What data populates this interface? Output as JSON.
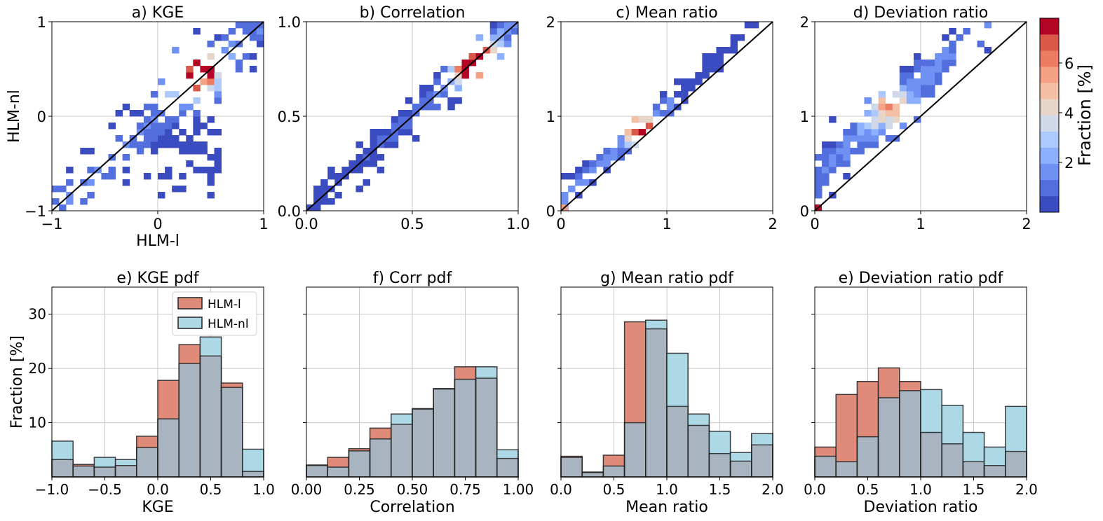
{
  "colors": {
    "hlm_l": "#e08a7a",
    "hlm_nl": "#add8e6",
    "overlap": "#a8b4c0",
    "grid": "#c8c8c8",
    "identity": "#000000"
  },
  "colorbar": {
    "label": "Fraction [%]",
    "ticks": [
      "2",
      "4",
      "6"
    ],
    "palette": [
      "#3b4cc0",
      "#536edd",
      "#6f91f3",
      "#8db0fe",
      "#aec9fd",
      "#cfd9ea",
      "#e8d5c9",
      "#f3c0a6",
      "#f5a186",
      "#ed7d62",
      "#d95847",
      "#b40426"
    ],
    "max": 7.8
  },
  "chart_data": [
    {
      "type": "heatmap",
      "title": "a) KGE",
      "xlabel": "HLM-l",
      "ylabel": "HLM-nl",
      "xlim": [
        -1,
        1
      ],
      "ylim": [
        -1,
        1
      ],
      "xticks": [
        "−1",
        "0",
        "1"
      ],
      "yticks": [
        "−1",
        "0",
        "1"
      ],
      "grid": true,
      "identity_line": true
    },
    {
      "type": "heatmap",
      "title": "b) Correlation",
      "xlim": [
        0,
        1
      ],
      "ylim": [
        0,
        1
      ],
      "xticks": [
        "0.0",
        "0.5",
        "1.0"
      ],
      "yticks": [
        "0.0",
        "0.5",
        "1.0"
      ],
      "grid": true,
      "identity_line": true
    },
    {
      "type": "heatmap",
      "title": "c) Mean ratio",
      "xlim": [
        0,
        2
      ],
      "ylim": [
        0,
        2
      ],
      "xticks": [
        "0",
        "1",
        "2"
      ],
      "yticks": [
        "0",
        "1",
        "2"
      ],
      "grid": true,
      "identity_line": true
    },
    {
      "type": "heatmap",
      "title": "d) Deviation ratio",
      "xlim": [
        0,
        2
      ],
      "ylim": [
        0,
        2
      ],
      "xticks": [
        "0",
        "1",
        "2"
      ],
      "yticks": [
        "0",
        "1",
        "2"
      ],
      "grid": true,
      "identity_line": true
    },
    {
      "type": "bar",
      "title": "e) KGE pdf",
      "xlabel": "KGE",
      "ylabel": "Fraction [%]",
      "xlim": [
        -1,
        1
      ],
      "ylim": [
        0,
        35
      ],
      "xticks": [
        "−1.0",
        "−0.5",
        "0.0",
        "0.5",
        "1.0"
      ],
      "yticks": [
        "10",
        "20",
        "30"
      ],
      "legend": "top-right",
      "bin_edges": [
        -1.0,
        -0.8,
        -0.6,
        -0.4,
        -0.2,
        0.0,
        0.2,
        0.4,
        0.6,
        0.8,
        1.0
      ],
      "series": [
        {
          "name": "HLM-l",
          "values": [
            3.2,
            2.3,
            1.8,
            2.1,
            7.5,
            17.8,
            24.4,
            22.3,
            17.3,
            1.0
          ]
        },
        {
          "name": "HLM-nl",
          "values": [
            6.6,
            2.0,
            3.6,
            3.2,
            5.4,
            10.7,
            20.9,
            25.8,
            16.5,
            5.1
          ]
        }
      ]
    },
    {
      "type": "bar",
      "title": "f) Corr pdf",
      "xlabel": "Correlation",
      "xlim": [
        0,
        1
      ],
      "ylim": [
        0,
        35
      ],
      "xticks": [
        "0.00",
        "0.25",
        "0.50",
        "0.75",
        "1.00"
      ],
      "bin_edges": [
        0.0,
        0.1,
        0.2,
        0.3,
        0.4,
        0.5,
        0.6,
        0.7,
        0.8,
        0.9,
        1.0
      ],
      "series": [
        {
          "name": "HLM-l",
          "values": [
            2.2,
            3.6,
            5.2,
            9.0,
            9.7,
            12.6,
            16.3,
            20.3,
            18.2,
            3.4
          ]
        },
        {
          "name": "HLM-nl",
          "values": [
            2.1,
            1.8,
            4.8,
            7.0,
            11.6,
            12.5,
            16.2,
            18.0,
            20.3,
            5.0
          ]
        }
      ]
    },
    {
      "type": "bar",
      "title": "g) Mean ratio pdf",
      "xlabel": "Mean ratio",
      "xlim": [
        0,
        2
      ],
      "ylim": [
        0,
        35
      ],
      "xticks": [
        "0.0",
        "0.5",
        "1.0",
        "1.5",
        "2.0"
      ],
      "bin_edges": [
        0.0,
        0.2,
        0.4,
        0.6,
        0.8,
        1.0,
        1.2,
        1.4,
        1.6,
        1.8,
        2.0
      ],
      "series": [
        {
          "name": "HLM-l",
          "values": [
            3.8,
            0.9,
            4.0,
            28.6,
            27.3,
            13.0,
            9.5,
            4.3,
            2.9,
            5.9
          ]
        },
        {
          "name": "HLM-nl",
          "values": [
            3.6,
            0.8,
            2.0,
            10.0,
            28.9,
            22.8,
            11.6,
            8.4,
            4.5,
            8.0
          ]
        }
      ]
    },
    {
      "type": "bar",
      "title": "e) Deviation ratio pdf",
      "xlabel": "Deviation ratio",
      "xlim": [
        0,
        2
      ],
      "ylim": [
        0,
        35
      ],
      "xticks": [
        "0.0",
        "0.5",
        "1.0",
        "1.5",
        "2.0"
      ],
      "bin_edges": [
        0.0,
        0.2,
        0.4,
        0.6,
        0.8,
        1.0,
        1.2,
        1.4,
        1.6,
        1.8,
        2.0
      ],
      "series": [
        {
          "name": "HLM-l",
          "values": [
            5.5,
            15.2,
            17.6,
            20.1,
            17.6,
            8.2,
            6.1,
            2.8,
            2.1,
            4.7
          ]
        },
        {
          "name": "HLM-nl",
          "values": [
            3.8,
            2.8,
            7.4,
            14.6,
            15.9,
            16.1,
            13.2,
            8.2,
            5.5,
            13.0
          ]
        }
      ]
    }
  ]
}
